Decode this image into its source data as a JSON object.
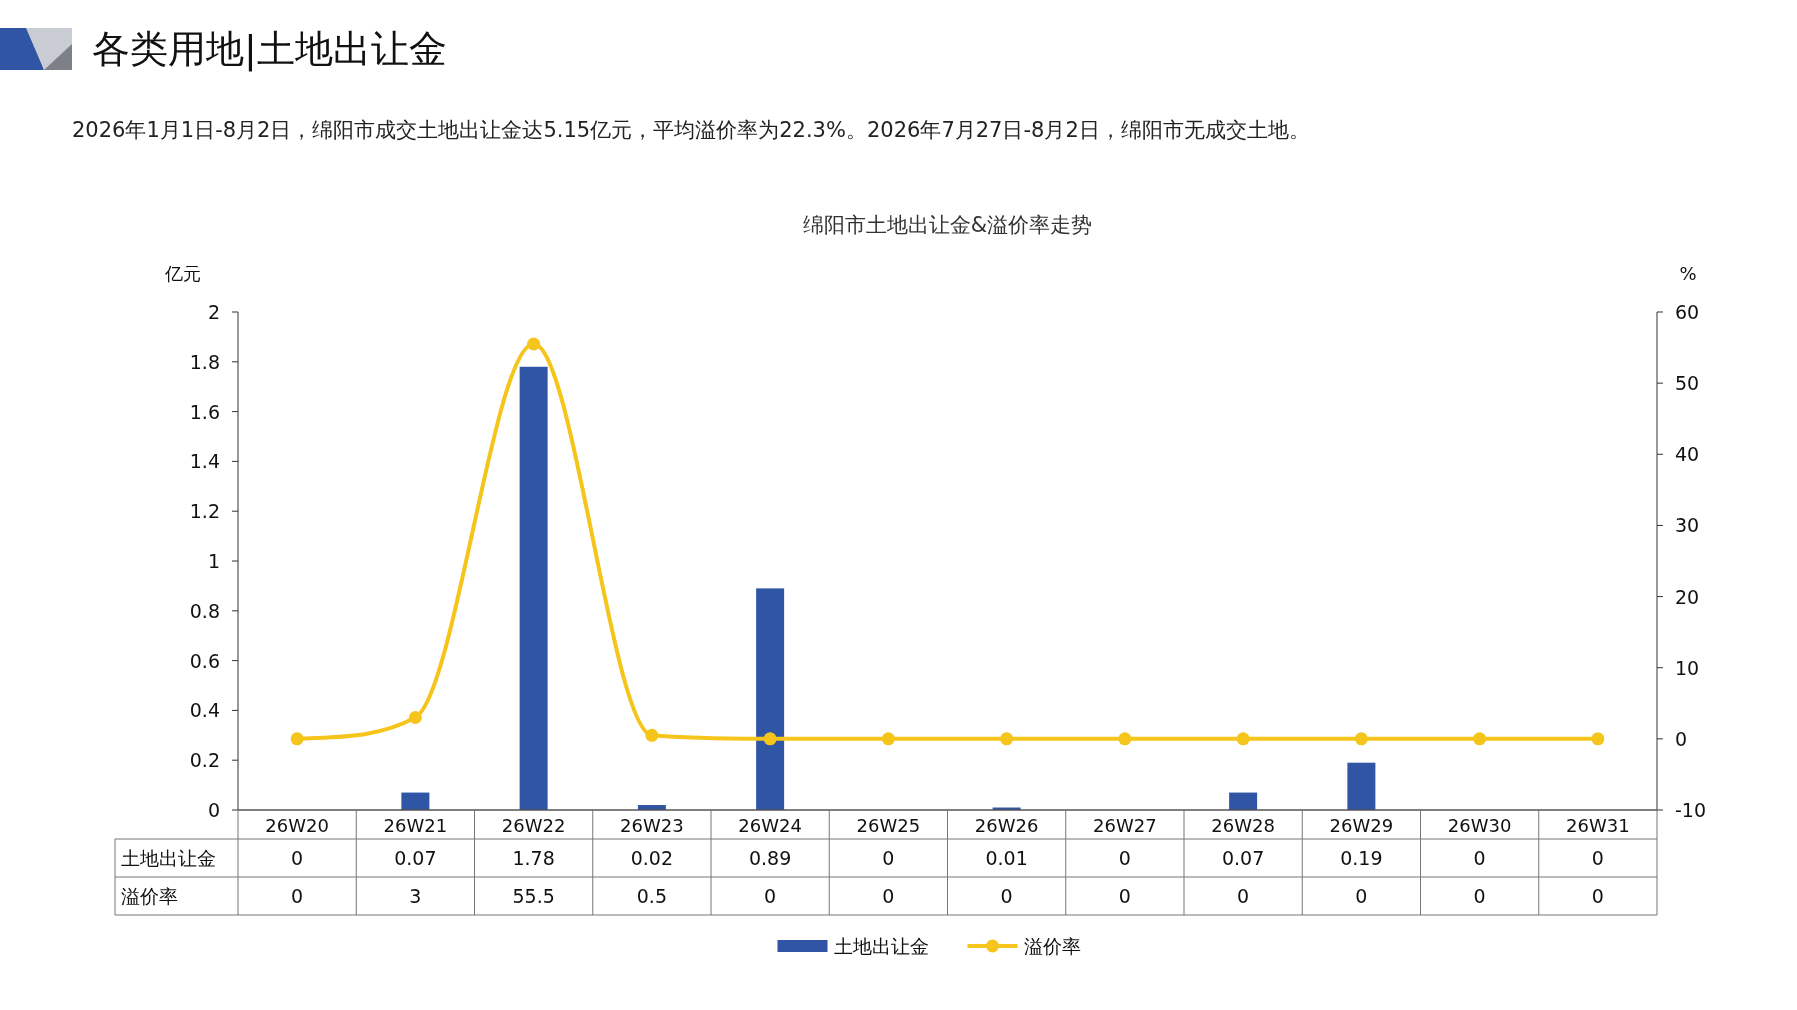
{
  "chart_data": {
    "type": "bar",
    "title": "各类用地|土地出让金",
    "subtitle": "2026年1月1日-8月2日，绵阳市成交土地出让金达5.15亿元，平均溢价率为22.3%。2026年7月27日-8月2日，绵阳市无成交土地。",
    "annotations": [
      "绵阳市土地出让金&溢价率走势"
    ],
    "ylabel": "亿元",
    "y2label": "%",
    "categories": [
      "26W20",
      "26W21",
      "26W22",
      "26W23",
      "26W24",
      "26W25",
      "26W26",
      "26W27",
      "26W28",
      "26W29",
      "26W30",
      "26W31"
    ],
    "series": [
      {
        "name": "土地出让金",
        "color": "#2f55a4",
        "values": [
          0,
          0.07,
          1.78,
          0.02,
          0.89,
          0,
          0.01,
          0,
          0.07,
          0.19,
          0,
          0
        ]
      },
      {
        "name": "溢价率",
        "type": "line",
        "axis": "y2",
        "color": "#f5c51b",
        "marker": "circle",
        "values": [
          0,
          3,
          55.5,
          0.5,
          0,
          0,
          0,
          0,
          0,
          0,
          0,
          0
        ]
      }
    ],
    "ylim": [
      0,
      2
    ],
    "yticks": [
      0,
      0.2,
      0.4,
      0.6,
      0.8,
      1,
      1.2,
      1.4,
      1.6,
      1.8,
      2
    ],
    "y2lim": [
      -10,
      60
    ],
    "y2ticks": [
      -10,
      0,
      10,
      20,
      30,
      40,
      50,
      60
    ],
    "data_labels": true,
    "legend": "bottom",
    "grid": false
  }
}
